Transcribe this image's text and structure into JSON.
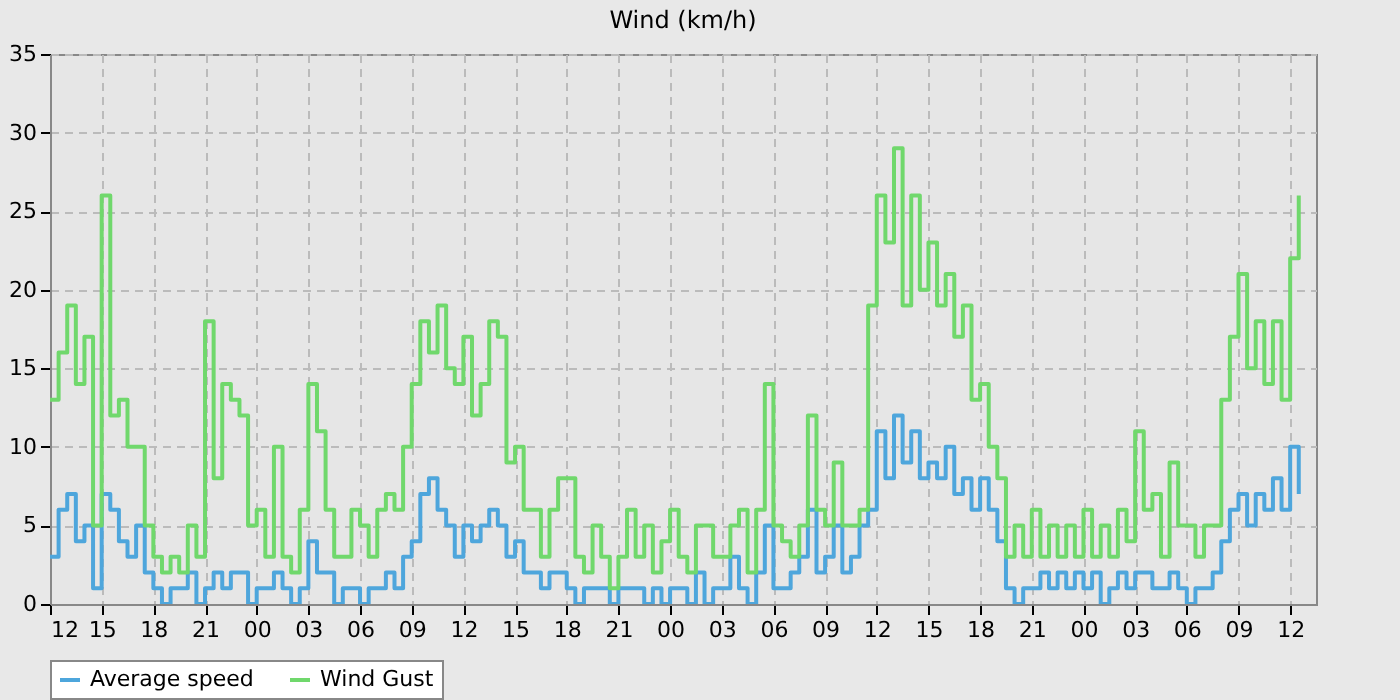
{
  "chart_data": {
    "type": "step",
    "title": "Wind (km/h)",
    "x": [
      12,
      12.5,
      13,
      13.5,
      14,
      14.5,
      15,
      15.5,
      16,
      16.5,
      17,
      17.5,
      18,
      18.5,
      19,
      19.5,
      20,
      20.5,
      21,
      21.5,
      22,
      22.5,
      23,
      23.5,
      24,
      24.5,
      25,
      25.5,
      26,
      26.5,
      27,
      27.5,
      28,
      28.5,
      29,
      29.5,
      30,
      30.5,
      31,
      31.5,
      32,
      32.5,
      33,
      33.5,
      34,
      34.5,
      35,
      35.5,
      36,
      36.5,
      37,
      37.5,
      38,
      38.5,
      39,
      39.5,
      40,
      40.5,
      41,
      41.5,
      42,
      42.5,
      43,
      43.5,
      44,
      44.5,
      45,
      45.5,
      46,
      46.5,
      47,
      47.5,
      48,
      48.5,
      49,
      49.5,
      50,
      50.5,
      51,
      51.5,
      52,
      52.5,
      53,
      53.5,
      54,
      54.5,
      55,
      55.5,
      56,
      56.5,
      57,
      57.5,
      58,
      58.5,
      59,
      59.5,
      60,
      60.5,
      61,
      61.5,
      62,
      62.5,
      63,
      63.5,
      64,
      64.5,
      65,
      65.5,
      66,
      66.5,
      67,
      67.5,
      68,
      68.5,
      69,
      69.5,
      70,
      70.5,
      71,
      71.5,
      72,
      72.5,
      73,
      73.5,
      74,
      74.5,
      75,
      75.5,
      76,
      76.5,
      77,
      77.5,
      78,
      78.5,
      79,
      79.5,
      80,
      80.5,
      81,
      81.5,
      82,
      82.5,
      83,
      83.5,
      84,
      84.5
    ],
    "series": [
      {
        "name": "Average speed",
        "color": "#4ea6dc",
        "values": [
          3,
          6,
          7,
          4,
          5,
          1,
          7,
          6,
          4,
          3,
          5,
          2,
          1,
          0,
          1,
          1,
          2,
          0,
          1,
          2,
          1,
          2,
          2,
          0,
          1,
          1,
          2,
          1,
          0,
          1,
          4,
          2,
          2,
          0,
          1,
          1,
          0,
          1,
          1,
          2,
          1,
          3,
          4,
          7,
          8,
          6,
          5,
          3,
          5,
          4,
          5,
          6,
          5,
          3,
          4,
          2,
          2,
          1,
          2,
          2,
          1,
          0,
          1,
          1,
          1,
          0,
          1,
          1,
          1,
          0,
          1,
          0,
          1,
          1,
          0,
          2,
          0,
          1,
          1,
          3,
          1,
          0,
          2,
          5,
          1,
          1,
          2,
          3,
          6,
          2,
          3,
          5,
          2,
          3,
          5,
          6,
          11,
          8,
          12,
          9,
          11,
          8,
          9,
          8,
          10,
          7,
          8,
          6,
          8,
          6,
          4,
          1,
          0,
          1,
          1,
          2,
          1,
          2,
          1,
          2,
          1,
          2,
          0,
          1,
          2,
          1,
          2,
          2,
          1,
          1,
          2,
          1,
          0,
          1,
          1,
          2,
          4,
          6,
          7,
          5,
          7,
          6,
          8,
          6,
          10,
          7
        ]
      },
      {
        "name": "Wind Gust",
        "color": "#70d86c",
        "values": [
          13,
          16,
          19,
          14,
          17,
          5,
          26,
          12,
          13,
          10,
          10,
          5,
          3,
          2,
          3,
          2,
          5,
          3,
          18,
          8,
          14,
          13,
          12,
          5,
          6,
          3,
          10,
          3,
          2,
          6,
          14,
          11,
          6,
          3,
          3,
          6,
          5,
          3,
          6,
          7,
          6,
          10,
          14,
          18,
          16,
          19,
          15,
          14,
          17,
          12,
          14,
          18,
          17,
          9,
          10,
          6,
          6,
          3,
          6,
          8,
          8,
          3,
          2,
          5,
          3,
          1,
          3,
          6,
          3,
          5,
          2,
          4,
          6,
          3,
          2,
          5,
          5,
          3,
          3,
          5,
          6,
          2,
          6,
          14,
          5,
          4,
          3,
          5,
          12,
          6,
          5,
          9,
          5,
          5,
          6,
          19,
          26,
          23,
          29,
          19,
          26,
          20,
          23,
          19,
          21,
          17,
          19,
          13,
          14,
          10,
          8,
          3,
          5,
          3,
          6,
          3,
          5,
          3,
          5,
          3,
          6,
          3,
          5,
          3,
          6,
          4,
          11,
          6,
          7,
          3,
          9,
          5,
          5,
          3,
          5,
          5,
          13,
          17,
          21,
          15,
          18,
          14,
          18,
          13,
          22,
          26
        ]
      }
    ],
    "xlim": [
      12,
      85.5
    ],
    "xticks": [
      12,
      15,
      18,
      21,
      {
        "value": 24,
        "label": "00"
      },
      {
        "value": 27,
        "label": "03"
      },
      {
        "value": 30,
        "label": "06"
      },
      {
        "value": 33,
        "label": "09"
      },
      {
        "value": 36,
        "label": "12"
      },
      {
        "value": 39,
        "label": "15"
      },
      {
        "value": 42,
        "label": "18"
      },
      {
        "value": 45,
        "label": "21"
      },
      {
        "value": 48,
        "label": "00"
      },
      {
        "value": 51,
        "label": "03"
      },
      {
        "value": 54,
        "label": "06"
      },
      {
        "value": 57,
        "label": "09"
      },
      {
        "value": 60,
        "label": "12"
      },
      {
        "value": 63,
        "label": "15"
      },
      {
        "value": 66,
        "label": "18"
      },
      {
        "value": 69,
        "label": "21"
      },
      {
        "value": 72,
        "label": "00"
      },
      {
        "value": 75,
        "label": "03"
      },
      {
        "value": 78,
        "label": "06"
      },
      {
        "value": 81,
        "label": "09"
      },
      {
        "value": 84,
        "label": "12"
      }
    ],
    "ylim": [
      0,
      35
    ],
    "yticks": [
      0,
      5,
      10,
      15,
      20,
      25,
      30,
      35
    ],
    "grid": true,
    "legend": "bottom"
  }
}
